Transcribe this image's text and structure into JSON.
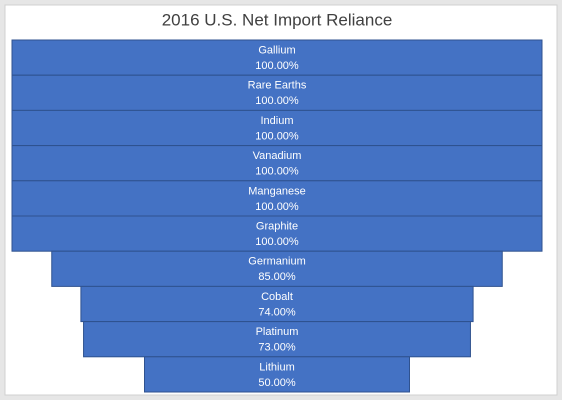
{
  "chart_data": {
    "type": "funnel",
    "title": "2016 U.S. Net Import Reliance",
    "categories": [
      "Gallium",
      "Rare Earths",
      "Indium",
      "Vanadium",
      "Manganese",
      "Graphite",
      "Germanium",
      "Cobalt",
      "Platinum",
      "Lithium"
    ],
    "values": [
      100,
      100,
      100,
      100,
      100,
      100,
      85,
      74,
      73,
      50
    ],
    "value_labels": [
      "100.00%",
      "100.00%",
      "100.00%",
      "100.00%",
      "100.00%",
      "100.00%",
      "85.00%",
      "74.00%",
      "73.00%",
      "50.00%"
    ],
    "color": "#4472c4"
  }
}
